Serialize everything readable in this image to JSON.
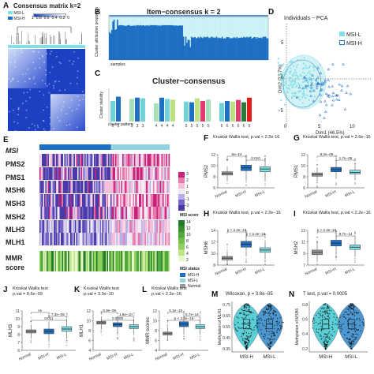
{
  "colors": {
    "msi_l": "#7fe0e6",
    "msi_h": "#1f6fc4",
    "normal": "#9a9a9a",
    "consensus_dark": "#1d3fc2",
    "consensus_light": "#ffffff"
  },
  "panelA": {
    "letter": "A",
    "title": "Consensus matrix k=2",
    "legend": [
      "MSI-L",
      "MSI-H"
    ],
    "scale_ticks": [
      "1",
      "0.8",
      "0.6",
      "0.4",
      "0.2",
      "0"
    ]
  },
  "panelB": {
    "letter": "B",
    "title": "Item−consensus k = 2",
    "ylabel": "Cluster attribution proportion",
    "xlabel": "samples"
  },
  "panelC": {
    "letter": "C",
    "title": "Cluster−consensus",
    "ylabel": "Cluster stability",
    "xlabel": "cluster pattern",
    "chart_data": {
      "type": "bar",
      "categories": [
        "2",
        "2",
        "3",
        "3",
        "3",
        "4",
        "4",
        "4",
        "4",
        "5",
        "5",
        "5",
        "5",
        "5",
        "6",
        "6",
        "6",
        "6",
        "6",
        "6"
      ],
      "values": [
        0.62,
        0.75,
        0.68,
        0.72,
        0.7,
        0.55,
        0.72,
        0.68,
        0.66,
        0.6,
        0.58,
        0.7,
        0.62,
        0.66,
        0.56,
        0.62,
        0.6,
        0.65,
        0.58,
        0.72
      ],
      "ylim": [
        0,
        1
      ]
    }
  },
  "panelD": {
    "letter": "D",
    "title": "Individuals − PCA",
    "xlabel": "Dim1 (46.5%)",
    "ylabel": "Dim2 (13.7%)",
    "legend": [
      "MSI-L",
      "MSI-H"
    ],
    "x_ticks": [
      "0",
      "5",
      "10"
    ],
    "y_ticks": [
      "5",
      "0",
      "−5"
    ]
  },
  "panelE": {
    "letter": "E",
    "rows": [
      "MSI",
      "PMS2",
      "PMS1",
      "MSH6",
      "MSH3",
      "MSH2",
      "MLH3",
      "MLH1"
    ],
    "mmr_label": "MMR",
    "score_label": "score",
    "colorbar_ticks": [
      "3",
      "2",
      "1",
      "0",
      "−1",
      "−2"
    ],
    "msi_score_title": "MSI score",
    "msi_score_ticks": [
      "14",
      "12",
      "10",
      "8",
      "6",
      "4",
      "2"
    ],
    "msi_status_title": "MSI status",
    "msi_status_items": [
      "MSI-H",
      "MSI-L",
      "Normal"
    ]
  },
  "boxplots": [
    {
      "letter": "F",
      "test": "Kruskal Wallis test, p.val < 2.2e-16",
      "ylabel": "PMS2",
      "yticks": [
        "12",
        "10",
        "8",
        "6"
      ],
      "groups": [
        "Normal",
        "MSI-H",
        "MSI-L"
      ],
      "sig": [
        "5e−14",
        "0.010"
      ],
      "chart_data": {
        "type": "box",
        "categories": [
          "Normal",
          "MSI-H",
          "MSI-L"
        ],
        "median": [
          8.6,
          9.6,
          9.4
        ],
        "q1": [
          8.3,
          9.1,
          8.9
        ],
        "q3": [
          8.9,
          10.1,
          9.8
        ],
        "ylim": [
          6,
          12
        ]
      }
    },
    {
      "letter": "G",
      "test": "Kruskal Wallis test, p.val = 2.6e−15",
      "ylabel": "PMS1",
      "yticks": [
        "12",
        "10",
        "8",
        "6"
      ],
      "groups": [
        "Normal",
        "MSI-H",
        "MSI-L"
      ],
      "sig": [
        "8.2e−09",
        "1.7e−05"
      ],
      "chart_data": {
        "type": "box",
        "categories": [
          "Normal",
          "MSI-H",
          "MSI-L"
        ],
        "median": [
          8.4,
          9.3,
          8.8
        ],
        "q1": [
          8.1,
          8.9,
          8.5
        ],
        "q3": [
          8.7,
          9.7,
          9.2
        ],
        "ylim": [
          6,
          12
        ]
      }
    },
    {
      "letter": "H",
      "test": "Kruskal Wallis test, p.val < 2.2e−16",
      "ylabel": "MSH6",
      "yticks": [
        "14",
        "12",
        "10",
        "8"
      ],
      "groups": [
        "Normal",
        "MSI-H",
        "MSI-L"
      ],
      "sig": [
        "p < 2.2e−16",
        "p < 2.2e−16"
      ],
      "chart_data": {
        "type": "box",
        "categories": [
          "Normal",
          "MSI-H",
          "MSI-L"
        ],
        "median": [
          9.2,
          11.6,
          10.6
        ],
        "q1": [
          8.9,
          11.1,
          10.2
        ],
        "q3": [
          9.5,
          12.1,
          11.0
        ],
        "ylim": [
          8,
          14
        ]
      }
    },
    {
      "letter": "I",
      "test": "Kruskal Wallis test, p.val < 2.2e−16",
      "ylabel": "MSH2",
      "yticks": [
        "13",
        "11",
        "9",
        "7"
      ],
      "groups": [
        "Normal",
        "MSI-H",
        "MSI-L"
      ],
      "sig": [
        "p < 2.2e−16",
        "8.7e−14"
      ],
      "chart_data": {
        "type": "box",
        "categories": [
          "Normal",
          "MSI-H",
          "MSI-L"
        ],
        "median": [
          9.2,
          10.8,
          10.1
        ],
        "q1": [
          8.8,
          10.3,
          9.7
        ],
        "q3": [
          9.6,
          11.3,
          10.5
        ],
        "ylim": [
          7,
          13
        ]
      }
    },
    {
      "letter": "J",
      "test": "Kruskal Wallis test",
      "test2": "p.val = 8.6e−09",
      "ylabel": "MLH3",
      "yticks": [
        "11",
        "10",
        "9",
        "8",
        "7",
        "6"
      ],
      "groups": [
        "Normal",
        "MSI-H",
        "MSI-L"
      ],
      "sig": [
        "ns",
        "7.3e−09",
        "0.011"
      ],
      "chart_data": {
        "type": "box",
        "categories": [
          "Normal",
          "MSI-H",
          "MSI-L"
        ],
        "median": [
          8.4,
          8.4,
          8.7
        ],
        "q1": [
          8.2,
          8.1,
          8.4
        ],
        "q3": [
          8.6,
          8.7,
          9.0
        ],
        "ylim": [
          6,
          11
        ]
      }
    },
    {
      "letter": "K",
      "test": "Kruskal Wallis test",
      "test2": "p.val = 3.3e−10",
      "ylabel": "MLH1",
      "yticks": [
        "12",
        "10",
        "8",
        "6",
        "4"
      ],
      "groups": [
        "Normal",
        "MSI-H",
        "MSI-L"
      ],
      "sig": [
        "6.9e−06",
        "1.8e−10",
        "0.0008"
      ],
      "chart_data": {
        "type": "box",
        "categories": [
          "Normal",
          "MSI-H",
          "MSI-L"
        ],
        "median": [
          9.6,
          9.2,
          8.8
        ],
        "q1": [
          9.3,
          8.8,
          8.4
        ],
        "q3": [
          9.9,
          9.6,
          9.2
        ],
        "ylim": [
          4,
          12
        ]
      }
    },
    {
      "letter": "L",
      "test": "Kruskal Wallis test",
      "test2": "p.val < 2.2e−16",
      "ylabel": "MMR scores",
      "yticks": [
        "12",
        "10",
        "8",
        "6",
        "4"
      ],
      "groups": [
        "Normal",
        "MSI-H",
        "MSI-L"
      ],
      "sig": [
        "6.1e−15",
        "5.7e−14",
        "p < 2.2e−16"
      ],
      "chart_data": {
        "type": "box",
        "categories": [
          "Normal",
          "MSI-H",
          "MSI-L"
        ],
        "median": [
          7.4,
          9.3,
          8.8
        ],
        "q1": [
          7.1,
          8.8,
          8.4
        ],
        "q3": [
          7.7,
          9.8,
          9.2
        ],
        "ylim": [
          4,
          12
        ]
      }
    }
  ],
  "beeswarms": [
    {
      "letter": "M",
      "test": "Wilcoxon, p = 3.8e−05",
      "ylabel": "Methylation of MLH1",
      "yticks": [
        "0.75",
        "0.65",
        "0.55",
        "0.45",
        "0.35"
      ],
      "groups": [
        "MSI-H",
        "MSI-L"
      ]
    },
    {
      "letter": "N",
      "test": "T test, p.val = 0.0005",
      "ylabel": "Methylation of MSH6",
      "yticks": [
        "0.8",
        "0.6",
        "0.4",
        "0.2"
      ],
      "groups": [
        "MSI-H",
        "MSI-L"
      ]
    }
  ]
}
